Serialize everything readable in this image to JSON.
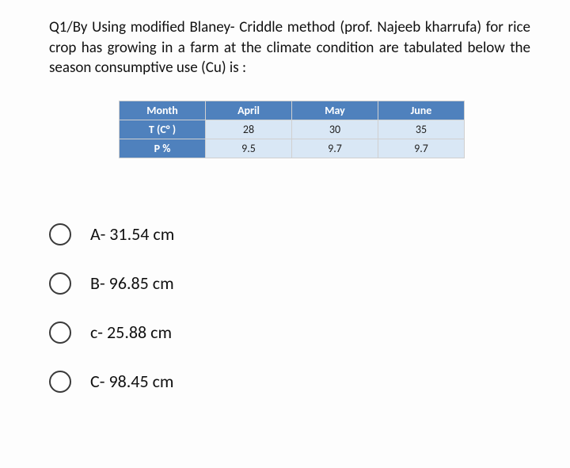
{
  "question": {
    "text": "Q1/By Using modified Blaney- Criddle method (prof. Najeeb kharrufa) for rice crop has growing in a farm at the climate condition are tabulated below the season consumptive use (Cu) is :",
    "fontsize": 19
  },
  "table": {
    "type": "table",
    "header_bg": "#4f81bd",
    "header_fg": "#ffffff",
    "cell_bg": "#d9e7f5",
    "cell_fg": "#222222",
    "border_color": "#d0d0d0",
    "rows": [
      {
        "cells": [
          "Month",
          "April",
          "May",
          "June"
        ],
        "style": "hdr"
      },
      {
        "cells": [
          "T (C° )",
          "28",
          "30",
          "35"
        ],
        "style": "mixed"
      },
      {
        "cells": [
          "P %",
          "9.5",
          "9.7",
          "9.7"
        ],
        "style": "mixed"
      }
    ]
  },
  "options": [
    {
      "label": "A- 31.54 cm"
    },
    {
      "label": "B- 96.85 cm"
    },
    {
      "label": "c- 25.88 cm"
    },
    {
      "label": "C- 98.45 cm"
    }
  ],
  "colors": {
    "page_bg": "#fdfdfd",
    "text": "#111111",
    "radio_border": "#3a3a3a"
  }
}
